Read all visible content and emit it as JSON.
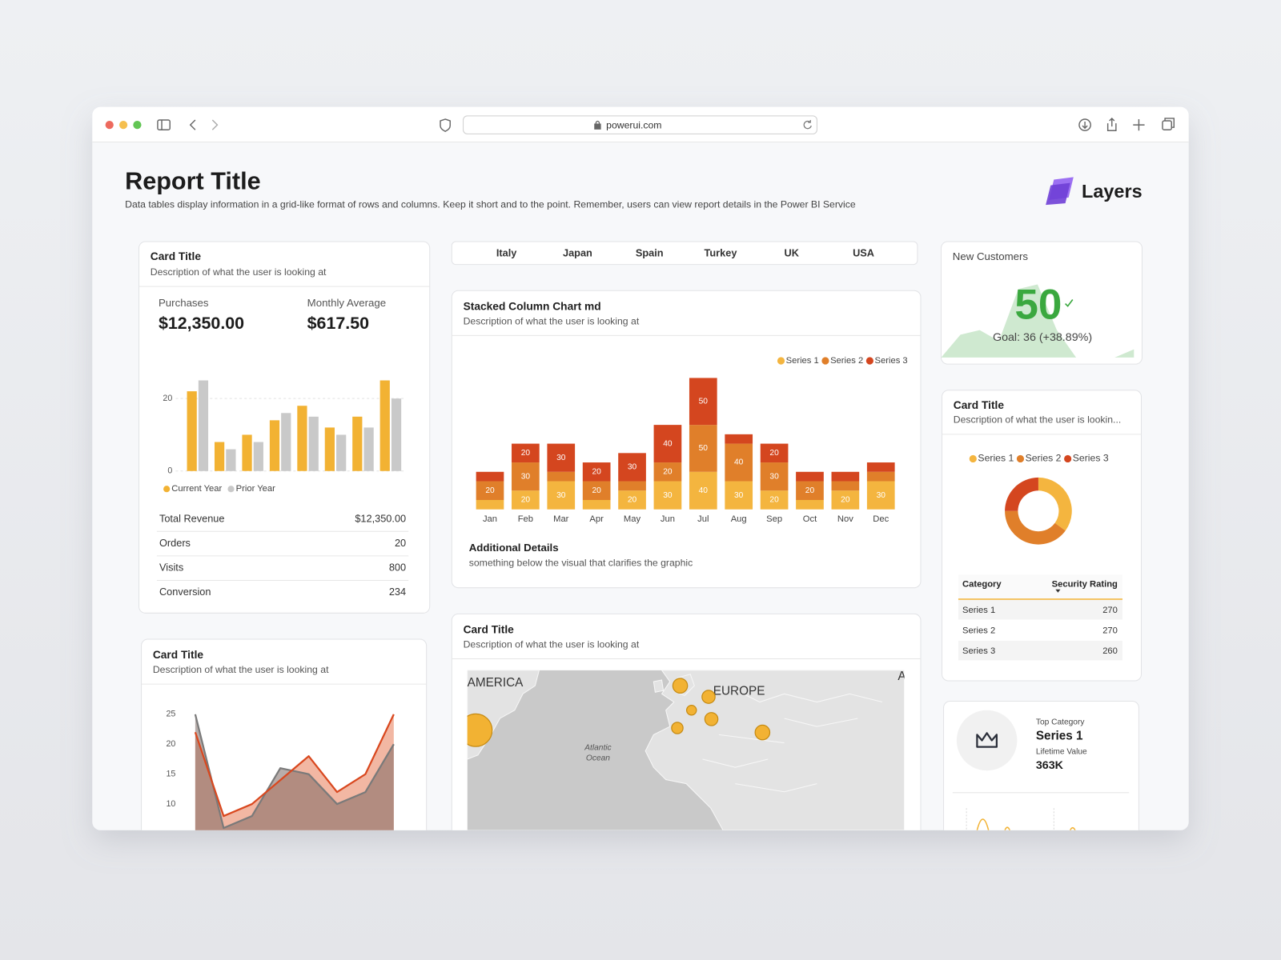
{
  "browser": {
    "url": "powerui.com"
  },
  "header": {
    "title": "Report Title",
    "description": "Data tables display information in a grid-like format of rows and columns. Keep it short and to the point. Remember, users can view report details in the Power BI Service",
    "logo": "Layers"
  },
  "filters": [
    "Italy",
    "Japan",
    "Spain",
    "Turkey",
    "UK",
    "USA"
  ],
  "cards": {
    "summary": {
      "title": "Card Title",
      "description": "Description of what the user is looking at",
      "metrics": [
        {
          "label": "Purchases",
          "value": "$12,350.00"
        },
        {
          "label": "Monthly Average",
          "value": "$617.50"
        }
      ],
      "table": [
        [
          "Total Revenue",
          "$12,350.00"
        ],
        [
          "Orders",
          20
        ],
        [
          "Visits",
          800
        ],
        [
          "Conversion",
          234
        ]
      ]
    },
    "trend": {
      "title": "Card Title",
      "description": "Description of what the user is looking at"
    },
    "stacked": {
      "footer_title": "Additional Details",
      "footer_text": "something below the visual that clarifies the graphic"
    },
    "map": {
      "title": "Card Title",
      "description": "Description of what the user is looking at"
    },
    "kpi": {
      "title": "New Customers",
      "value": 50,
      "goal": "Goal: 36 (+38.89%)"
    },
    "rating": {
      "title": "Card Title",
      "description": "Description of what the user is lookin...",
      "columns": [
        "Category",
        "Security Rating"
      ],
      "rows": [
        [
          "Series 1",
          270
        ],
        [
          "Series 2",
          270
        ],
        [
          "Series 3",
          260
        ]
      ]
    },
    "top": {
      "label": "Top Category",
      "value": "Series 1",
      "sub_label": "Lifetime Value",
      "sub_value": "363K"
    }
  },
  "chart_data": [
    {
      "type": "bar",
      "categories": [
        null,
        null,
        null,
        null,
        null,
        null,
        null,
        null
      ],
      "series": [
        {
          "name": "Current Year",
          "color": "#f2b233",
          "values": [
            22,
            8,
            10,
            14,
            18,
            12,
            15,
            25
          ]
        },
        {
          "name": "Prior Year",
          "color": "#c9c9c9",
          "values": [
            25,
            6,
            8,
            16,
            15,
            10,
            12,
            20
          ]
        }
      ],
      "ylim": [
        0,
        25
      ],
      "yticks": [
        0,
        20
      ],
      "grid": true,
      "legend": "bottom"
    },
    {
      "type": "stacked-bar",
      "title": "Stacked Column Chart md",
      "subtitle": "Description of what the user is looking at",
      "categories": [
        "Jan",
        "Feb",
        "Mar",
        "Apr",
        "May",
        "Jun",
        "Jul",
        "Aug",
        "Sep",
        "Oct",
        "Nov",
        "Dec"
      ],
      "series": [
        {
          "name": "Series 1",
          "color": "#f4b53f",
          "values": [
            10,
            20,
            30,
            10,
            20,
            30,
            40,
            30,
            20,
            10,
            20,
            30
          ]
        },
        {
          "name": "Series 2",
          "color": "#e07f2a",
          "values": [
            20,
            30,
            10,
            20,
            10,
            20,
            50,
            40,
            30,
            20,
            10,
            10
          ]
        },
        {
          "name": "Series 3",
          "color": "#d4461f",
          "values": [
            10,
            20,
            30,
            20,
            30,
            40,
            50,
            10,
            20,
            10,
            10,
            10
          ]
        }
      ],
      "ylim": [
        0,
        140
      ],
      "legend": "top-right"
    },
    {
      "type": "area",
      "categories": [
        null,
        null,
        null,
        null,
        null,
        null,
        null,
        null
      ],
      "series": [
        {
          "color": "#d9481f",
          "values": [
            22,
            8,
            10,
            14,
            18,
            12,
            15,
            25
          ]
        },
        {
          "color": "#7a7a7a",
          "values": [
            25,
            6,
            8,
            16,
            15,
            10,
            12,
            20
          ]
        }
      ],
      "ylim": [
        0,
        25
      ],
      "yticks": [
        10,
        15,
        20,
        25
      ]
    },
    {
      "type": "donut",
      "categories": [
        "Series 1",
        "Series 2",
        "Series 3"
      ],
      "values": [
        35,
        40,
        25
      ],
      "colors": [
        "#f4b53f",
        "#e07f2a",
        "#d4461f"
      ],
      "legend": "top"
    },
    {
      "type": "sparkline",
      "values": [
        0,
        25,
        30,
        18,
        75,
        80,
        30,
        0,
        0,
        0,
        9
      ],
      "color": "#cfe9d0",
      "ylim": [
        0,
        100
      ]
    },
    {
      "type": "bubble-map",
      "x": [
        -72,
        0,
        10,
        4,
        11,
        -1,
        29
      ],
      "values": [
        41.5,
        51.5,
        49,
        46,
        44,
        42,
        41
      ],
      "sizes": [
        40,
        18,
        16,
        12,
        16,
        14,
        18
      ],
      "color": "#f2b233",
      "xlim": [
        -75,
        79
      ],
      "ylim": [
        19,
        55
      ],
      "annotations": [
        "AMERICA",
        "EUROPE",
        "Atlantic",
        "Ocean",
        "A"
      ]
    }
  ]
}
